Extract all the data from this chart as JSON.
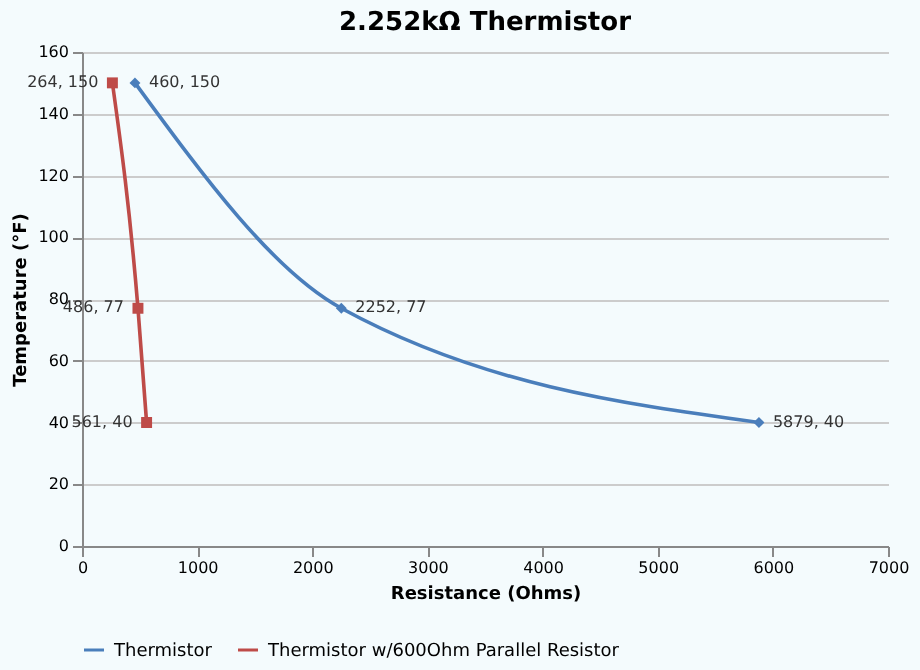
{
  "chart_data": {
    "type": "line",
    "title": "2.252kΩ Thermistor",
    "xlabel": "Resistance (Ohms)",
    "ylabel": "Temperature (°F)",
    "xlim": [
      0,
      7000
    ],
    "xticks": [
      0,
      1000,
      2000,
      3000,
      4000,
      5000,
      6000,
      7000
    ],
    "ylim": [
      0,
      160
    ],
    "yticks": [
      0,
      20,
      40,
      60,
      80,
      100,
      120,
      140,
      160
    ],
    "grid": "y",
    "legend": "bottom",
    "series": [
      {
        "name": "Thermistor",
        "color": "#4a7ebb",
        "marker": "diamond",
        "x": [
          460,
          2252,
          5879
        ],
        "values": [
          150,
          77,
          40
        ],
        "value_labels": [
          "460, 150",
          "2252, 77",
          "5879, 40"
        ]
      },
      {
        "name": "Thermistor w/600Ohm Parallel Resistor",
        "color": "#be4b48",
        "marker": "square",
        "x": [
          264,
          486,
          561
        ],
        "values": [
          150,
          77,
          40
        ],
        "value_labels": [
          "264, 150",
          "486, 77",
          "561, 40"
        ]
      }
    ]
  }
}
